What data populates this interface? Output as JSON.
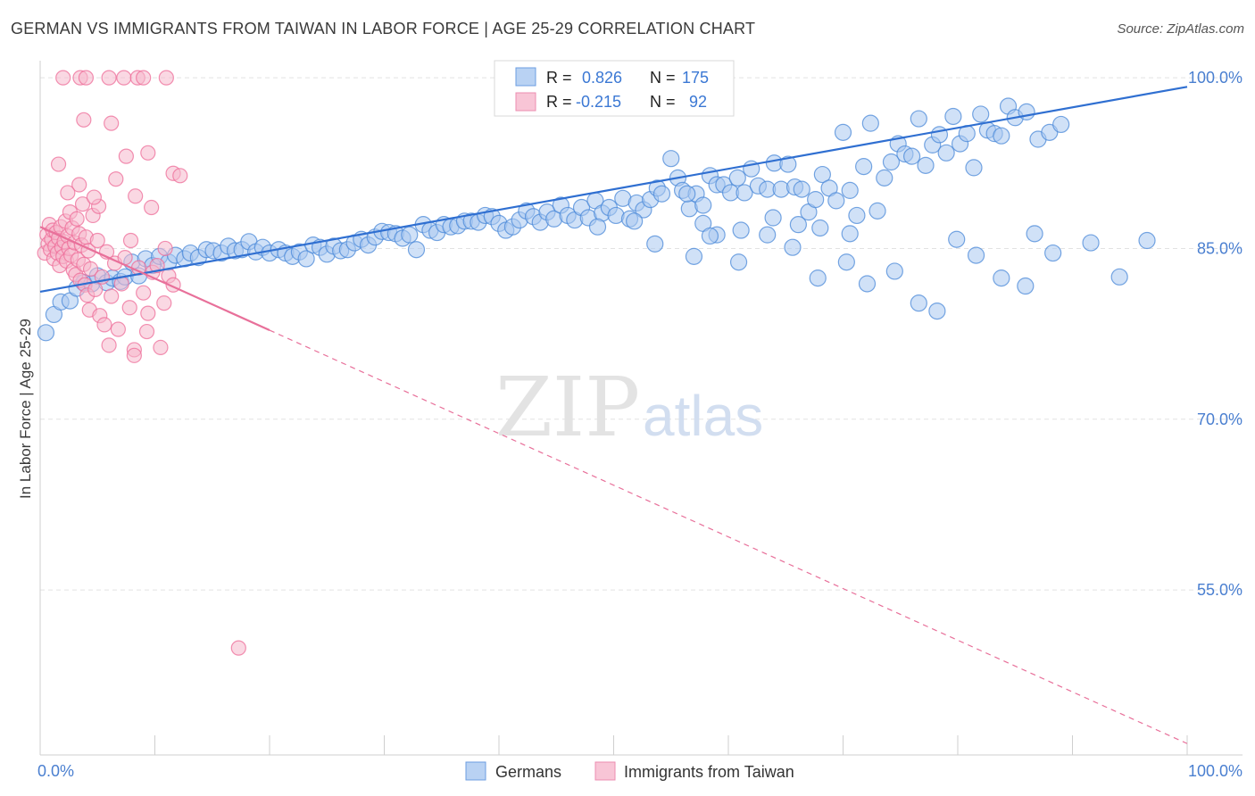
{
  "header": {
    "title": "GERMAN VS IMMIGRANTS FROM TAIWAN IN LABOR FORCE | AGE 25-29 CORRELATION CHART",
    "source": "Source: ZipAtlas.com"
  },
  "watermark": {
    "zip": "ZIP",
    "atlas": "atlas"
  },
  "colors": {
    "blue": "#4a88d8",
    "blue_fill": "#a9c8f0",
    "blue_line": "#2f6fd1",
    "pink": "#ee6c98",
    "pink_fill": "#f6b8cc",
    "pink_line": "#e8709a",
    "axis_text": "#4a7fd0",
    "grid": "#e2e2e2"
  },
  "legend_box": {
    "rows": [
      {
        "r_label": "R =",
        "r_value": "0.826",
        "n_label": "N =",
        "n_value": "175",
        "color": "blue"
      },
      {
        "r_label": "R =",
        "r_value": "-0.215",
        "n_label": "N =",
        "n_value": "92",
        "color": "pink"
      }
    ]
  },
  "chart_data": {
    "type": "scatter",
    "title": "GERMAN VS IMMIGRANTS FROM TAIWAN IN LABOR FORCE | AGE 25-29 CORRELATION CHART",
    "xlabel": "",
    "ylabel": "In Labor Force | Age 25-29",
    "xlim": [
      0,
      100
    ],
    "ylim": [
      40.5,
      101.5
    ],
    "x_tick_labels": [
      "0.0%",
      "100.0%"
    ],
    "y_ticks": [
      100,
      85,
      70,
      55
    ],
    "y_tick_labels": [
      "100.0%",
      "85.0%",
      "70.0%",
      "55.0%"
    ],
    "grid": "horizontal dashed",
    "legend": "bottom-center",
    "series": [
      {
        "name": "Germans",
        "color": "blue",
        "r": 0.826,
        "n": 175,
        "trend": {
          "x0": 0,
          "y0": 81.2,
          "x1": 100,
          "y1": 99.2,
          "solid_until": 100
        },
        "points": [
          [
            0.5,
            77.6
          ],
          [
            1.2,
            79.2
          ],
          [
            1.8,
            80.3
          ],
          [
            2.6,
            80.4
          ],
          [
            3.2,
            81.5
          ],
          [
            3.8,
            82.0
          ],
          [
            4.5,
            81.9
          ],
          [
            5.0,
            82.6
          ],
          [
            5.8,
            82.0
          ],
          [
            6.3,
            82.4
          ],
          [
            7.0,
            82.1
          ],
          [
            7.4,
            82.5
          ],
          [
            8.0,
            83.8
          ],
          [
            8.6,
            82.6
          ],
          [
            9.2,
            84.1
          ],
          [
            9.8,
            83.5
          ],
          [
            10.4,
            84.3
          ],
          [
            11.2,
            83.8
          ],
          [
            11.8,
            84.4
          ],
          [
            12.6,
            84.1
          ],
          [
            13.1,
            84.6
          ],
          [
            13.8,
            84.2
          ],
          [
            14.5,
            84.9
          ],
          [
            15.1,
            84.8
          ],
          [
            15.8,
            84.6
          ],
          [
            16.4,
            85.2
          ],
          [
            17.0,
            84.8
          ],
          [
            17.6,
            84.9
          ],
          [
            18.2,
            85.6
          ],
          [
            18.8,
            84.7
          ],
          [
            19.4,
            85.1
          ],
          [
            20.0,
            84.6
          ],
          [
            20.8,
            84.9
          ],
          [
            21.4,
            84.6
          ],
          [
            22.0,
            84.3
          ],
          [
            22.6,
            84.7
          ],
          [
            23.2,
            84.1
          ],
          [
            23.8,
            85.3
          ],
          [
            24.4,
            85.1
          ],
          [
            25.0,
            84.5
          ],
          [
            25.6,
            85.2
          ],
          [
            26.2,
            84.8
          ],
          [
            26.8,
            84.9
          ],
          [
            27.4,
            85.5
          ],
          [
            28.0,
            85.8
          ],
          [
            28.6,
            85.3
          ],
          [
            29.2,
            86.0
          ],
          [
            29.8,
            86.5
          ],
          [
            30.4,
            86.4
          ],
          [
            31.0,
            86.3
          ],
          [
            31.6,
            85.9
          ],
          [
            32.2,
            86.2
          ],
          [
            32.8,
            84.9
          ],
          [
            33.4,
            87.1
          ],
          [
            34.0,
            86.6
          ],
          [
            34.6,
            86.4
          ],
          [
            35.2,
            87.1
          ],
          [
            35.8,
            86.9
          ],
          [
            36.4,
            87.0
          ],
          [
            37.0,
            87.4
          ],
          [
            37.6,
            87.4
          ],
          [
            38.2,
            87.3
          ],
          [
            38.8,
            87.9
          ],
          [
            39.4,
            87.8
          ],
          [
            40.0,
            87.2
          ],
          [
            40.6,
            86.6
          ],
          [
            41.2,
            86.9
          ],
          [
            41.8,
            87.5
          ],
          [
            42.4,
            88.3
          ],
          [
            43.0,
            87.8
          ],
          [
            43.6,
            87.3
          ],
          [
            44.2,
            88.2
          ],
          [
            44.8,
            87.6
          ],
          [
            45.4,
            88.8
          ],
          [
            46.0,
            87.9
          ],
          [
            46.6,
            87.5
          ],
          [
            47.2,
            88.6
          ],
          [
            47.8,
            87.7
          ],
          [
            48.4,
            89.2
          ],
          [
            49.0,
            88.1
          ],
          [
            49.6,
            88.6
          ],
          [
            50.2,
            87.9
          ],
          [
            50.8,
            89.4
          ],
          [
            51.4,
            87.6
          ],
          [
            52.0,
            89.0
          ],
          [
            52.6,
            88.4
          ],
          [
            53.2,
            89.3
          ],
          [
            53.8,
            90.3
          ],
          [
            54.2,
            89.8
          ],
          [
            55.0,
            92.9
          ],
          [
            55.6,
            91.2
          ],
          [
            56.0,
            90.1
          ],
          [
            56.6,
            88.5
          ],
          [
            57.2,
            89.8
          ],
          [
            57.8,
            88.8
          ],
          [
            58.4,
            91.4
          ],
          [
            59.0,
            90.6
          ],
          [
            59.6,
            90.6
          ],
          [
            60.2,
            89.9
          ],
          [
            60.8,
            91.2
          ],
          [
            61.4,
            89.9
          ],
          [
            62.0,
            92.0
          ],
          [
            62.6,
            90.5
          ],
          [
            63.4,
            90.2
          ],
          [
            64.0,
            92.5
          ],
          [
            64.6,
            90.2
          ],
          [
            65.2,
            92.4
          ],
          [
            65.8,
            90.4
          ],
          [
            66.4,
            90.2
          ],
          [
            67.0,
            88.2
          ],
          [
            67.6,
            89.3
          ],
          [
            68.2,
            91.5
          ],
          [
            68.8,
            90.3
          ],
          [
            69.4,
            89.2
          ],
          [
            70.0,
            95.2
          ],
          [
            70.6,
            90.1
          ],
          [
            71.2,
            87.9
          ],
          [
            71.8,
            92.2
          ],
          [
            72.4,
            96.0
          ],
          [
            73.0,
            88.3
          ],
          [
            73.6,
            91.2
          ],
          [
            74.2,
            92.6
          ],
          [
            74.8,
            94.2
          ],
          [
            75.4,
            93.3
          ],
          [
            76.0,
            93.1
          ],
          [
            76.6,
            96.4
          ],
          [
            77.2,
            92.3
          ],
          [
            77.8,
            94.1
          ],
          [
            78.4,
            95.0
          ],
          [
            79.0,
            93.4
          ],
          [
            79.6,
            96.6
          ],
          [
            80.2,
            94.2
          ],
          [
            80.8,
            95.1
          ],
          [
            81.4,
            92.1
          ],
          [
            82.0,
            96.8
          ],
          [
            82.6,
            95.4
          ],
          [
            83.2,
            95.1
          ],
          [
            83.8,
            94.9
          ],
          [
            84.4,
            97.5
          ],
          [
            85.0,
            96.5
          ],
          [
            86.0,
            97.0
          ],
          [
            87.0,
            94.6
          ],
          [
            88.0,
            95.2
          ],
          [
            89.0,
            95.9
          ],
          [
            48.6,
            86.9
          ],
          [
            51.8,
            87.4
          ],
          [
            53.6,
            85.4
          ],
          [
            56.4,
            89.8
          ],
          [
            57.8,
            87.2
          ],
          [
            59.0,
            86.2
          ],
          [
            60.9,
            83.8
          ],
          [
            63.4,
            86.2
          ],
          [
            65.6,
            85.1
          ],
          [
            67.8,
            82.4
          ],
          [
            70.3,
            83.8
          ],
          [
            72.1,
            81.9
          ],
          [
            74.5,
            83.0
          ],
          [
            76.6,
            80.2
          ],
          [
            78.2,
            79.5
          ],
          [
            79.9,
            85.8
          ],
          [
            81.6,
            84.4
          ],
          [
            83.8,
            82.4
          ],
          [
            85.9,
            81.7
          ],
          [
            86.7,
            86.3
          ],
          [
            88.3,
            84.6
          ],
          [
            91.6,
            85.5
          ],
          [
            94.1,
            82.5
          ],
          [
            96.5,
            85.7
          ],
          [
            57.0,
            84.3
          ],
          [
            58.4,
            86.1
          ],
          [
            61.1,
            86.6
          ],
          [
            63.9,
            87.7
          ],
          [
            66.1,
            87.1
          ],
          [
            68.0,
            86.8
          ],
          [
            70.6,
            86.3
          ]
        ]
      },
      {
        "name": "Immigrants from Taiwan",
        "color": "pink",
        "r": -0.215,
        "n": 92,
        "trend": {
          "x0": 0,
          "y0": 86.9,
          "x1": 100,
          "y1": 41.5,
          "solid_until": 20
        },
        "points": [
          [
            0.4,
            84.6
          ],
          [
            0.6,
            86.2
          ],
          [
            0.7,
            85.4
          ],
          [
            0.8,
            87.1
          ],
          [
            0.9,
            84.9
          ],
          [
            1.0,
            85.8
          ],
          [
            1.1,
            86.6
          ],
          [
            1.2,
            84.1
          ],
          [
            1.3,
            85.2
          ],
          [
            1.4,
            86.4
          ],
          [
            1.5,
            84.6
          ],
          [
            1.6,
            85.9
          ],
          [
            1.7,
            83.5
          ],
          [
            1.8,
            86.9
          ],
          [
            1.9,
            85.1
          ],
          [
            2.0,
            84.3
          ],
          [
            2.1,
            85.6
          ],
          [
            2.2,
            87.4
          ],
          [
            2.3,
            83.9
          ],
          [
            2.4,
            86.1
          ],
          [
            2.5,
            85.0
          ],
          [
            2.6,
            88.2
          ],
          [
            2.7,
            84.4
          ],
          [
            2.8,
            86.8
          ],
          [
            2.9,
            83.1
          ],
          [
            3.0,
            85.5
          ],
          [
            3.1,
            82.7
          ],
          [
            3.2,
            87.6
          ],
          [
            3.3,
            84.0
          ],
          [
            3.4,
            86.3
          ],
          [
            3.5,
            82.2
          ],
          [
            3.6,
            85.3
          ],
          [
            3.7,
            88.9
          ],
          [
            3.8,
            83.6
          ],
          [
            3.9,
            81.8
          ],
          [
            4.0,
            86.0
          ],
          [
            4.1,
            80.9
          ],
          [
            4.2,
            84.8
          ],
          [
            4.3,
            79.6
          ],
          [
            4.4,
            83.2
          ],
          [
            4.6,
            87.9
          ],
          [
            4.8,
            81.4
          ],
          [
            5.0,
            85.7
          ],
          [
            5.2,
            79.1
          ],
          [
            5.4,
            82.5
          ],
          [
            5.6,
            78.3
          ],
          [
            5.8,
            84.7
          ],
          [
            6.0,
            76.5
          ],
          [
            6.2,
            80.8
          ],
          [
            6.5,
            83.7
          ],
          [
            6.8,
            77.9
          ],
          [
            7.1,
            81.9
          ],
          [
            7.4,
            84.2
          ],
          [
            7.8,
            79.8
          ],
          [
            8.2,
            76.1
          ],
          [
            8.6,
            83.3
          ],
          [
            9.0,
            81.1
          ],
          [
            9.4,
            79.3
          ],
          [
            9.8,
            82.9
          ],
          [
            10.2,
            83.5
          ],
          [
            10.8,
            80.2
          ],
          [
            11.2,
            82.6
          ],
          [
            11.6,
            81.8
          ],
          [
            2.0,
            100.0
          ],
          [
            3.5,
            100.0
          ],
          [
            4.0,
            100.0
          ],
          [
            6.0,
            100.0
          ],
          [
            7.3,
            100.0
          ],
          [
            8.5,
            100.0
          ],
          [
            9.0,
            100.0
          ],
          [
            11.0,
            100.0
          ],
          [
            3.8,
            96.3
          ],
          [
            6.2,
            96.0
          ],
          [
            7.5,
            93.1
          ],
          [
            9.4,
            93.4
          ],
          [
            1.6,
            92.4
          ],
          [
            6.6,
            91.1
          ],
          [
            11.6,
            91.6
          ],
          [
            12.2,
            91.4
          ],
          [
            3.4,
            90.6
          ],
          [
            5.1,
            88.7
          ],
          [
            8.3,
            89.6
          ],
          [
            9.7,
            88.6
          ],
          [
            2.4,
            89.9
          ],
          [
            4.7,
            89.5
          ],
          [
            7.9,
            85.7
          ],
          [
            10.9,
            85.0
          ],
          [
            8.2,
            75.6
          ],
          [
            9.3,
            77.7
          ],
          [
            10.5,
            76.3
          ],
          [
            17.3,
            49.9
          ]
        ]
      }
    ]
  },
  "bottom_legend": {
    "items": [
      {
        "label": "Germans",
        "color": "blue"
      },
      {
        "label": "Immigrants from Taiwan",
        "color": "pink"
      }
    ]
  }
}
